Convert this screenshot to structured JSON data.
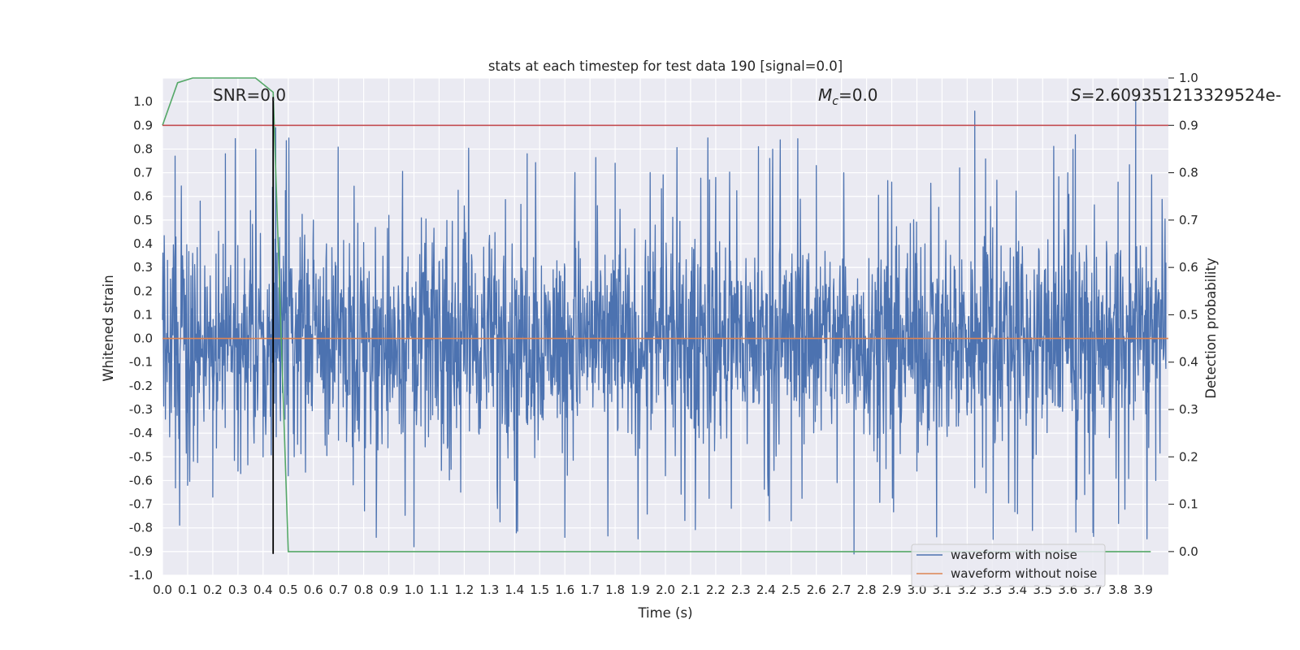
{
  "chart_data": {
    "type": "line",
    "title": "stats at each timestep for test data 190 [signal=0.0]",
    "xlabel": "Time (s)",
    "ylabel": "Whitened strain",
    "ylabel_right": "Detection probability",
    "xlim": [
      0.0,
      4.0
    ],
    "ylim": [
      -1.0,
      1.1
    ],
    "ylim_right": [
      -0.05,
      1.0
    ],
    "x_ticks": [
      "0.0",
      "0.1",
      "0.2",
      "0.3",
      "0.4",
      "0.5",
      "0.6",
      "0.7",
      "0.8",
      "0.9",
      "1.0",
      "1.1",
      "1.2",
      "1.3",
      "1.4",
      "1.5",
      "1.6",
      "1.7",
      "1.8",
      "1.9",
      "2.0",
      "2.1",
      "2.2",
      "2.3",
      "2.4",
      "2.5",
      "2.6",
      "2.7",
      "2.8",
      "2.9",
      "3.0",
      "3.1",
      "3.2",
      "3.3",
      "3.4",
      "3.5",
      "3.6",
      "3.7",
      "3.8",
      "3.9"
    ],
    "y_ticks": [
      "1.0",
      "0.9",
      "0.8",
      "0.7",
      "0.6",
      "0.5",
      "0.4",
      "0.3",
      "0.2",
      "0.1",
      "0.0",
      "-0.1",
      "-0.2",
      "-0.3",
      "-0.4",
      "-0.5",
      "-0.6",
      "-0.7",
      "-0.8",
      "-0.9",
      "-1.0"
    ],
    "y_ticks_right": [
      "1.0",
      "0.9",
      "0.8",
      "0.7",
      "0.6",
      "0.5",
      "0.4",
      "0.3",
      "0.2",
      "0.1",
      "0.0"
    ],
    "grid": true,
    "legend_position": "bottom-right",
    "annotations": {
      "snr": "SNR=0.0",
      "mc_symbol": "M",
      "mc_subscript": "c",
      "mc_value": "=0.0",
      "s_symbol": "S",
      "s_value": "=2.609351213329524e-"
    },
    "series": [
      {
        "name": "waveform with noise",
        "color": "#4c72b0",
        "axis": "left",
        "style": "dense noise, roughly within -0.9 to 1.0",
        "x": [
          0.0,
          0.02,
          0.05,
          0.1,
          0.15,
          0.2,
          0.25,
          0.3,
          0.35,
          0.4,
          0.45,
          0.5,
          0.6,
          0.7,
          0.8,
          0.85,
          0.9,
          1.0,
          1.2,
          1.4,
          1.45,
          1.6,
          1.8,
          2.0,
          2.2,
          2.37,
          2.5,
          2.6,
          2.75,
          2.9,
          3.0,
          3.17,
          3.23,
          3.4,
          3.6,
          3.63,
          3.7,
          3.8,
          3.87,
          3.95,
          3.99
        ],
        "y": [
          0.08,
          0.33,
          0.77,
          -0.62,
          0.58,
          -0.67,
          0.78,
          -0.56,
          0.54,
          -0.5,
          0.89,
          -0.58,
          0.5,
          -0.43,
          0.38,
          -0.84,
          0.52,
          -0.88,
          0.56,
          -0.6,
          0.78,
          -0.84,
          0.74,
          -0.58,
          0.68,
          0.81,
          -0.77,
          0.73,
          -0.91,
          0.66,
          -0.56,
          0.72,
          0.96,
          -0.74,
          0.7,
          0.86,
          -0.82,
          0.66,
          1.0,
          -0.6,
          0.32
        ]
      },
      {
        "name": "waveform without noise",
        "color": "#dd8452",
        "axis": "left",
        "x": [
          0.0,
          4.0
        ],
        "y": [
          0.0,
          0.0
        ]
      },
      {
        "name": "",
        "color": "#55a868",
        "axis": "right",
        "x": [
          0.0,
          0.06,
          0.12,
          0.2,
          0.37,
          0.44,
          0.5,
          3.93
        ],
        "y": [
          0.9,
          0.99,
          1.0,
          1.0,
          1.0,
          0.97,
          0.0,
          0.0
        ]
      },
      {
        "name": "",
        "color": "#c44e52",
        "axis": "right",
        "x": [
          0.0,
          4.0
        ],
        "y": [
          0.9,
          0.9
        ]
      }
    ],
    "vertical_marker": {
      "x": 0.44,
      "y_top": 1.02,
      "y_bottom": -0.91,
      "color": "#000000"
    }
  }
}
